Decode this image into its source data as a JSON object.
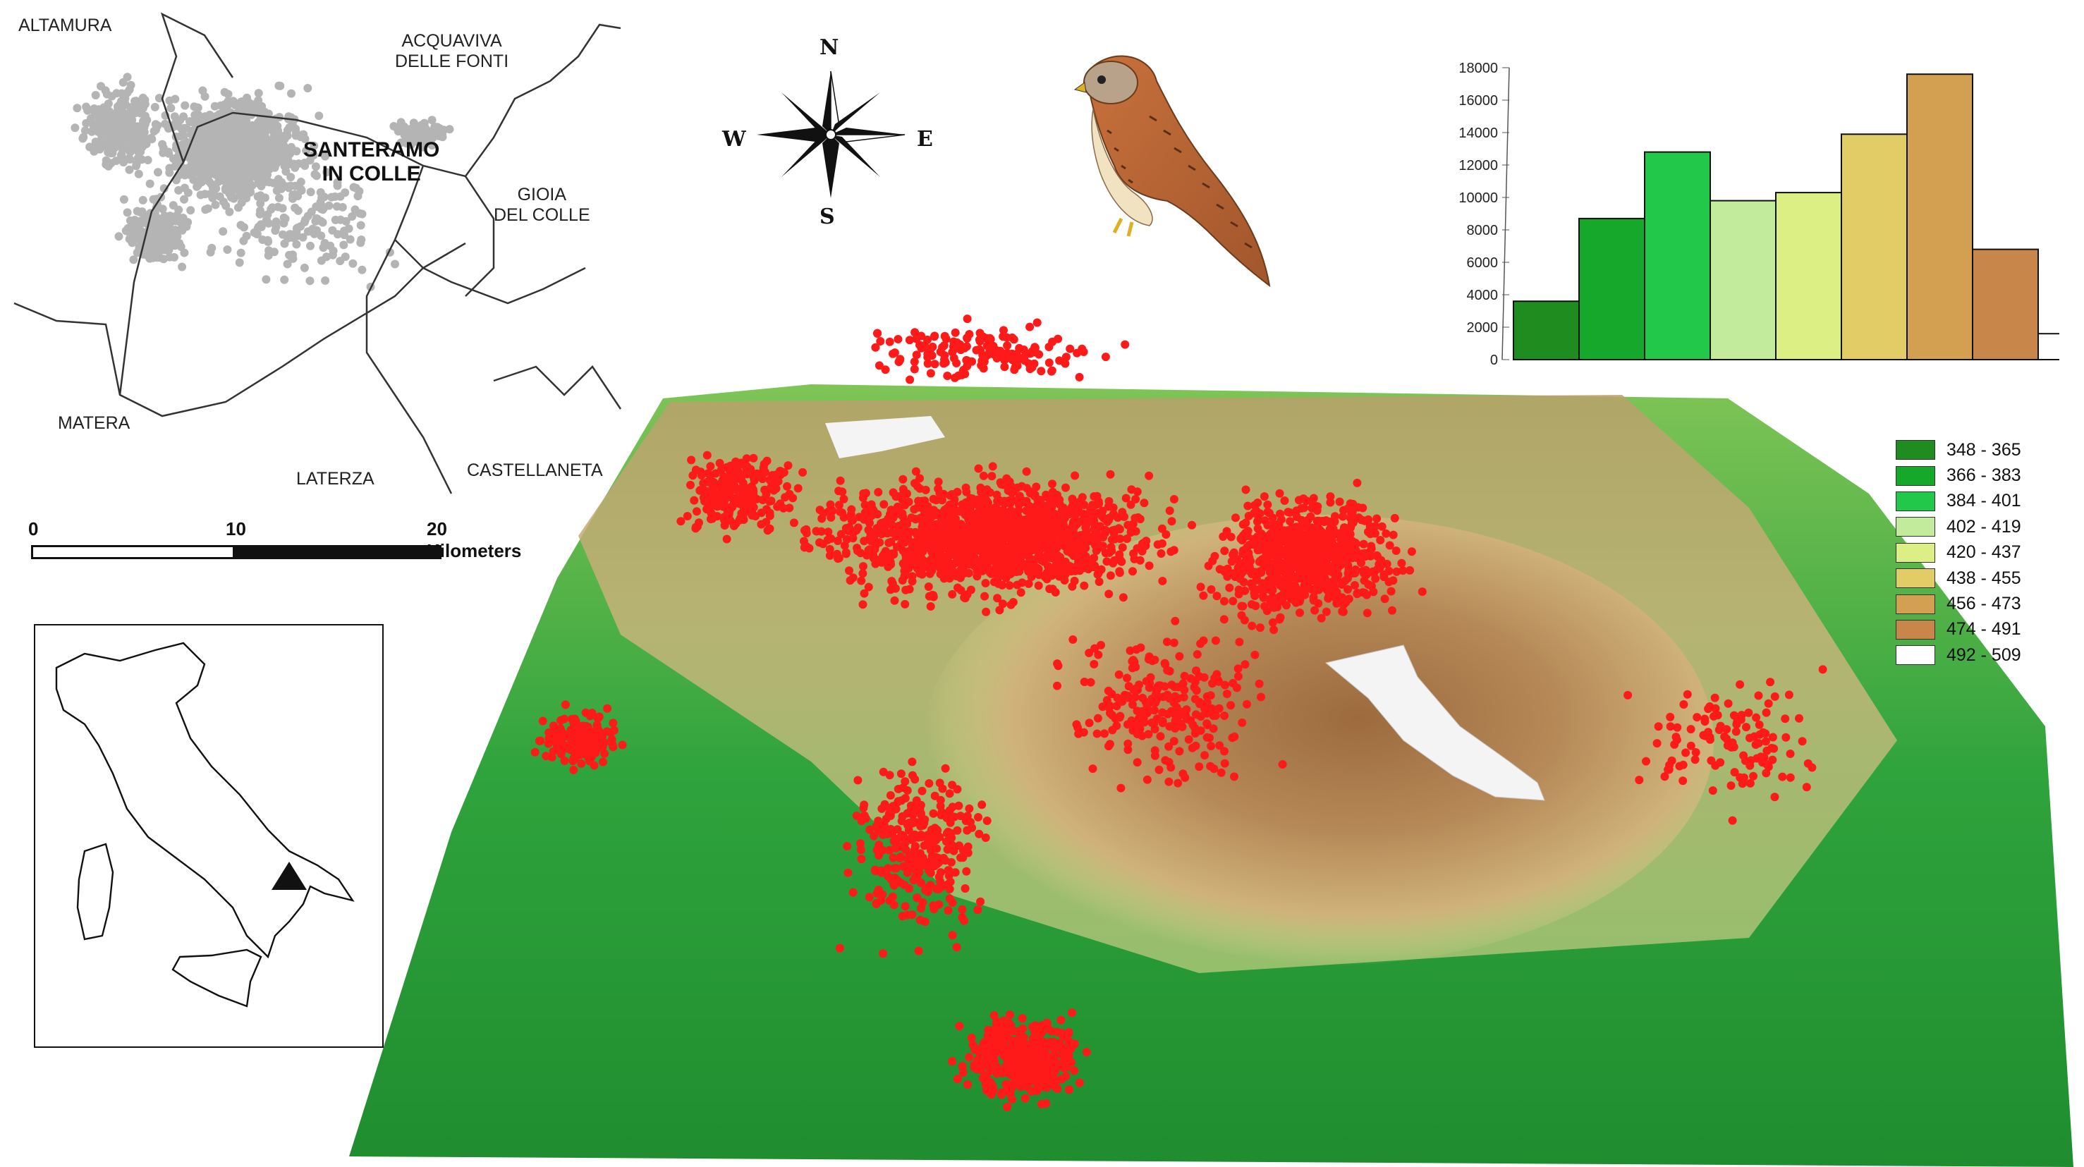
{
  "locator_map": {
    "towns": [
      {
        "name": "ALTAMURA"
      },
      {
        "name": "ACQUAVIVA\nDELLE FONTI"
      },
      {
        "name": "SANTERAMO\nIN COLLE"
      },
      {
        "name": "GIOIA\nDEL COLLE"
      },
      {
        "name": "MATERA"
      },
      {
        "name": "LATERZA"
      },
      {
        "name": "CASTELLANETA"
      }
    ]
  },
  "scale_bar": {
    "ticks": [
      "0",
      "10",
      "20 Kilometers"
    ]
  },
  "compass": {
    "n": "N",
    "s": "S",
    "w": "W",
    "e": "E"
  },
  "bird_illustration": {
    "icon": "kestrel-bird-icon"
  },
  "legend": {
    "classes": [
      {
        "label": "348 - 365",
        "color": "#1e8c1e"
      },
      {
        "label": "366 - 383",
        "color": "#16a82a"
      },
      {
        "label": "384 - 401",
        "color": "#22c84a"
      },
      {
        "label": "402 - 419",
        "color": "#c2eb9c"
      },
      {
        "label": "420 - 437",
        "color": "#dcef84"
      },
      {
        "label": "438 - 455",
        "color": "#e2cc66"
      },
      {
        "label": "456 - 473",
        "color": "#d2a050"
      },
      {
        "label": "474 - 491",
        "color": "#c8864a"
      },
      {
        "label": "492 - 509",
        "color": "#ffffff"
      }
    ]
  },
  "chart_data": {
    "type": "bar",
    "categories": [
      "348 - 365",
      "366 - 383",
      "384 - 401",
      "402 - 419",
      "420 - 437",
      "438 - 455",
      "456 - 473",
      "474 - 491",
      "492 - 509"
    ],
    "values": [
      3600,
      8700,
      12800,
      9800,
      10300,
      13900,
      17600,
      6800,
      1600
    ],
    "colors": [
      "#1e8c1e",
      "#16a82a",
      "#22c84a",
      "#c2eb9c",
      "#dcef84",
      "#e2cc66",
      "#d2a050",
      "#c8864a",
      "#ffffff"
    ],
    "yticks": [
      "0",
      "2000",
      "4000",
      "6000",
      "8000",
      "10000",
      "12000",
      "14000",
      "16000",
      "18000"
    ],
    "ylim": [
      0,
      18000
    ],
    "grid": false
  },
  "colors": {
    "points_locator": "#b4b4b4",
    "points_terrain": "#ff1a1a",
    "italy_marker": "#111111"
  }
}
